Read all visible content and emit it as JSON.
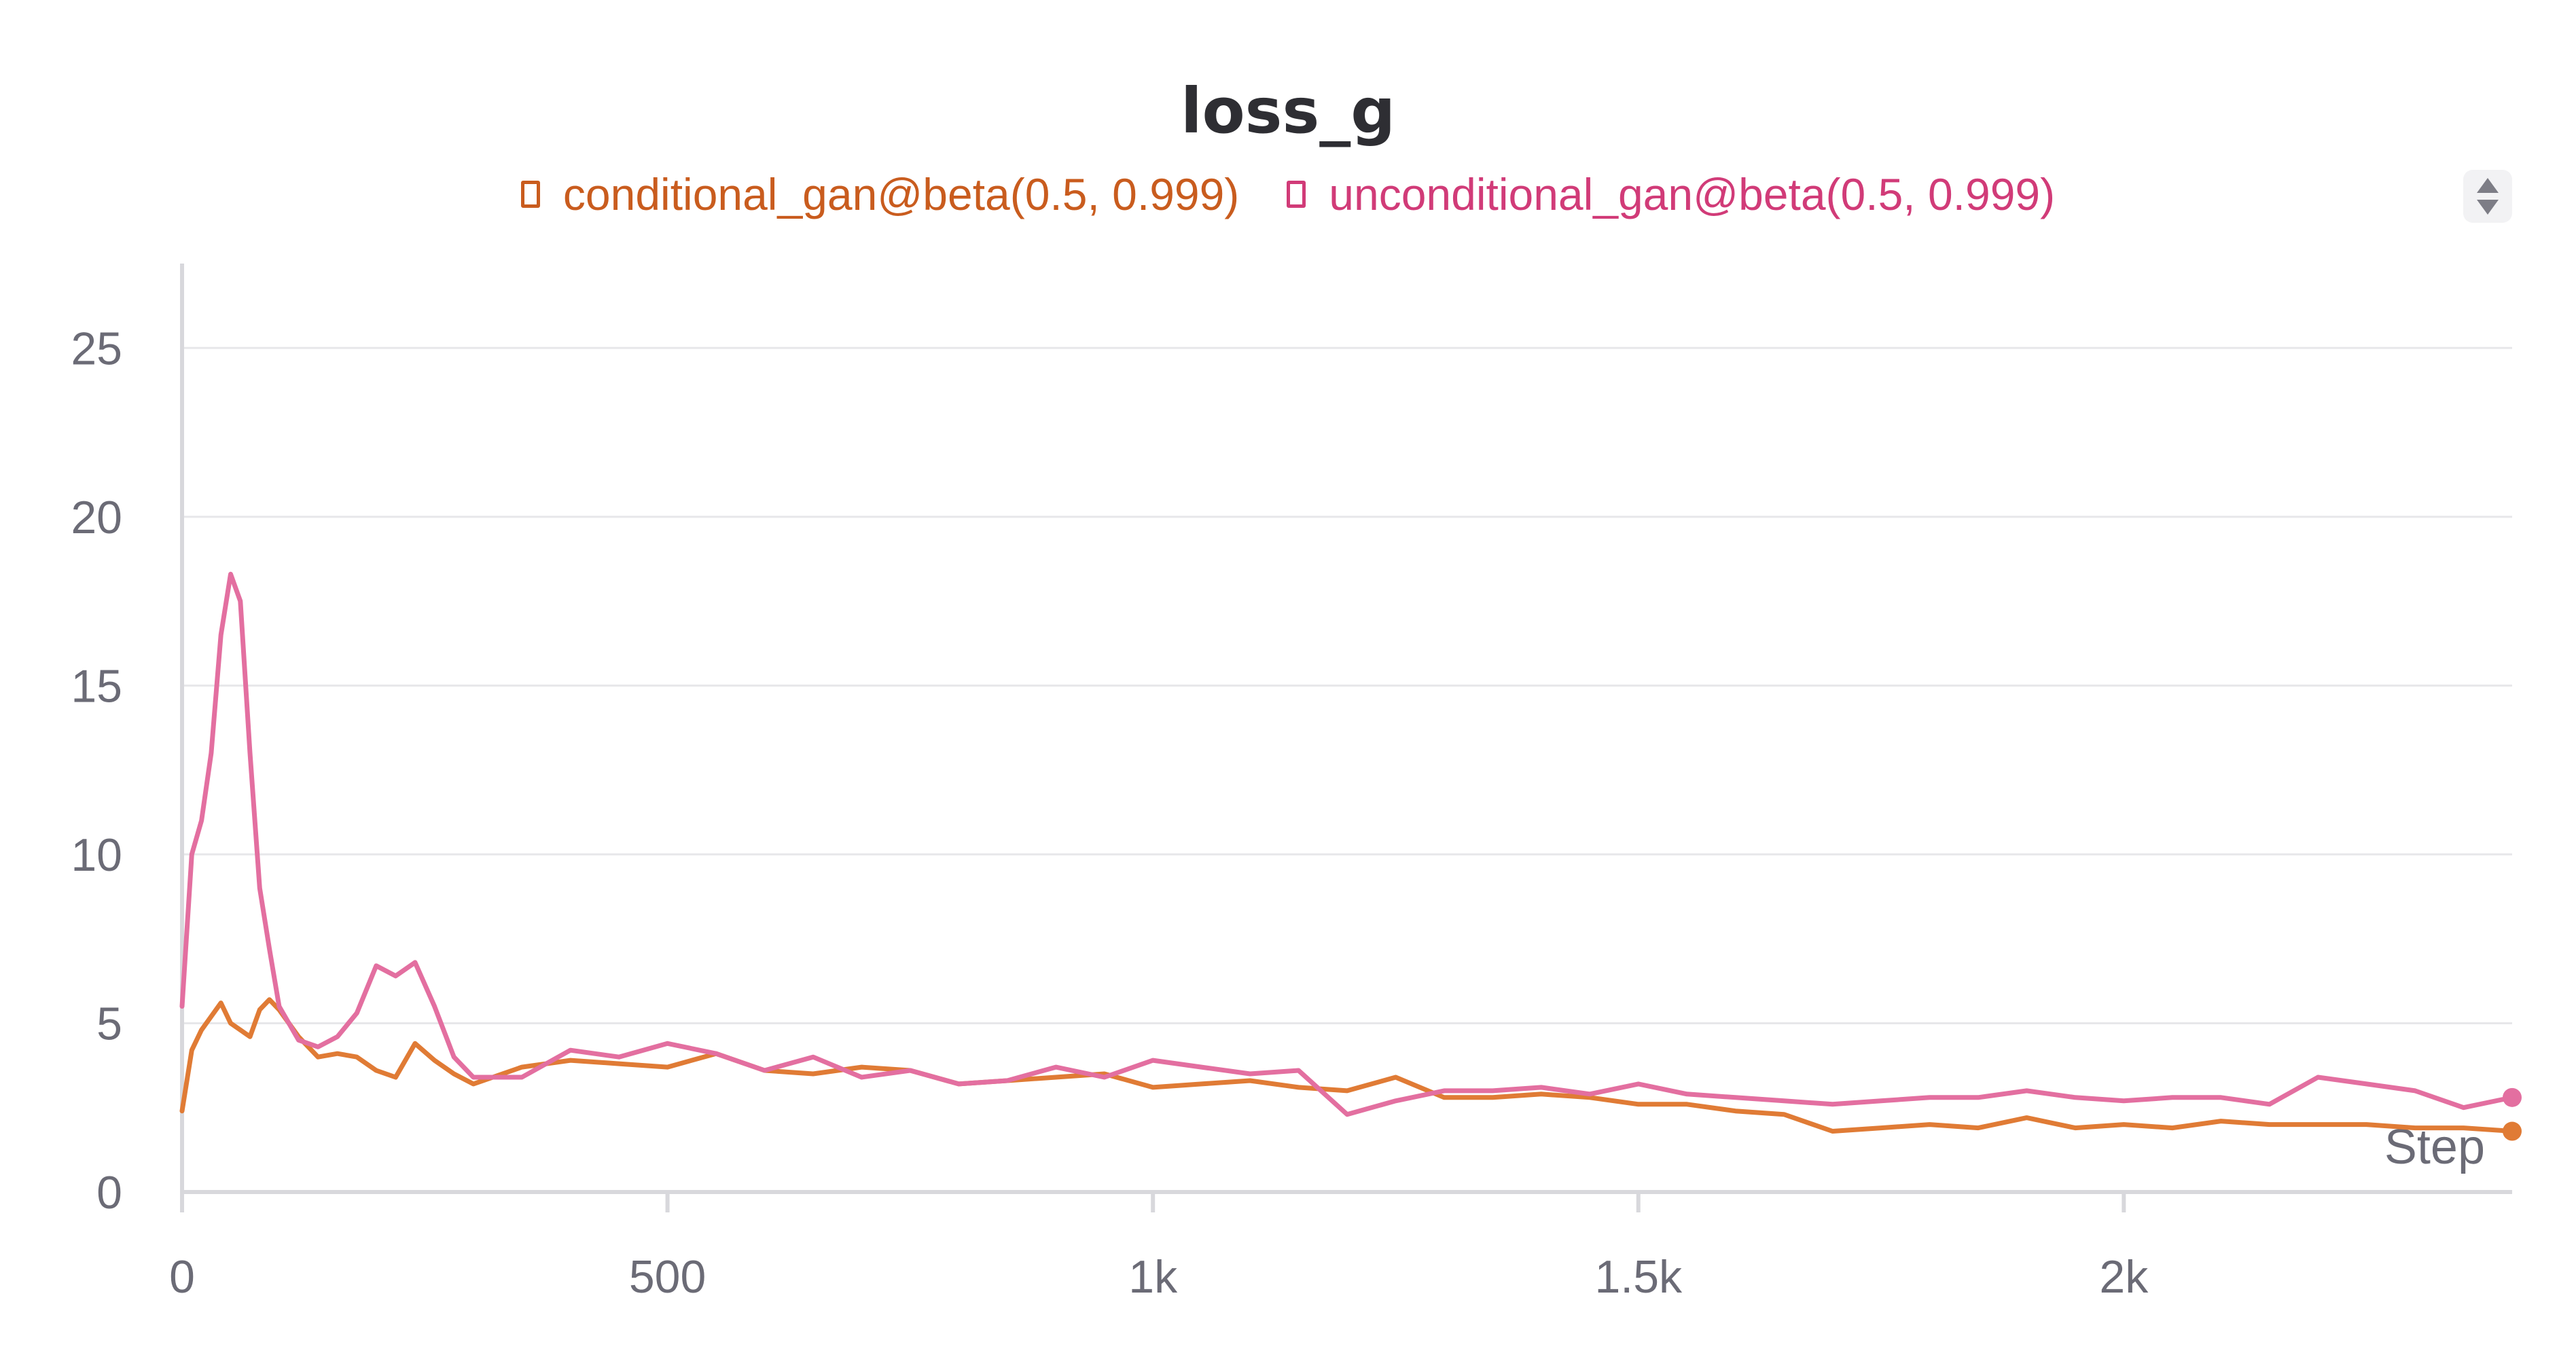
{
  "colors": {
    "series_conditional": "#e07b35",
    "series_unconditional": "#e36fa0",
    "legend_conditional_text": "#c95c1e",
    "legend_unconditional_text": "#d13b78",
    "axis_text": "#6b6b76",
    "grid": "#e7e7ea",
    "axis_line": "#d8d8dc",
    "title": "#2e2e33"
  },
  "legend_scroll_icon": "up-down-arrows-icon",
  "chart_data": {
    "type": "line",
    "title": "loss_g",
    "xlabel": "Step",
    "ylabel": "",
    "xlim": [
      0,
      2400
    ],
    "ylim": [
      0,
      27.5
    ],
    "grid": true,
    "legend_position": "top-center",
    "x_ticks": [
      0,
      500,
      1000,
      1500,
      2000
    ],
    "x_tick_labels": [
      "0",
      "500",
      "1k",
      "1.5k",
      "2k"
    ],
    "y_ticks": [
      0,
      5,
      10,
      15,
      20,
      25
    ],
    "y_tick_labels": [
      "0",
      "5",
      "10",
      "15",
      "20",
      "25"
    ],
    "x": [
      0,
      10,
      20,
      30,
      40,
      50,
      60,
      70,
      80,
      90,
      100,
      120,
      140,
      160,
      180,
      200,
      220,
      240,
      260,
      280,
      300,
      350,
      400,
      450,
      500,
      550,
      600,
      650,
      700,
      750,
      800,
      850,
      900,
      950,
      1000,
      1050,
      1100,
      1150,
      1200,
      1250,
      1300,
      1350,
      1400,
      1450,
      1500,
      1550,
      1600,
      1650,
      1700,
      1750,
      1800,
      1850,
      1900,
      1950,
      2000,
      2050,
      2100,
      2150,
      2200,
      2250,
      2300,
      2350,
      2400
    ],
    "series": [
      {
        "name": "conditional_gan@beta(0.5, 0.999)",
        "values": [
          2.4,
          4.2,
          4.8,
          5.2,
          5.6,
          5.0,
          4.8,
          4.6,
          5.4,
          5.7,
          5.4,
          4.6,
          4.0,
          4.1,
          4.0,
          3.6,
          3.4,
          4.4,
          3.9,
          3.5,
          3.2,
          3.7,
          3.9,
          3.8,
          3.7,
          4.1,
          3.6,
          3.5,
          3.7,
          3.6,
          3.2,
          3.3,
          3.4,
          3.5,
          3.1,
          3.2,
          3.3,
          3.1,
          3.0,
          3.4,
          2.8,
          2.8,
          2.9,
          2.8,
          2.6,
          2.6,
          2.4,
          2.3,
          1.8,
          1.9,
          2.0,
          1.9,
          2.2,
          1.9,
          2.0,
          1.9,
          2.1,
          2.0,
          2.0,
          2.0,
          1.9,
          1.9,
          1.8
        ]
      },
      {
        "name": "unconditional_gan@beta(0.5, 0.999)",
        "values": [
          5.5,
          10.0,
          11.0,
          13.0,
          16.5,
          18.3,
          17.5,
          13.0,
          9.0,
          7.2,
          5.5,
          4.5,
          4.3,
          4.6,
          5.3,
          6.7,
          6.4,
          6.8,
          5.5,
          4.0,
          3.4,
          3.4,
          4.2,
          4.0,
          4.4,
          4.1,
          3.6,
          4.0,
          3.4,
          3.6,
          3.2,
          3.3,
          3.7,
          3.4,
          3.9,
          3.7,
          3.5,
          3.6,
          2.3,
          2.7,
          3.0,
          3.0,
          3.1,
          2.9,
          3.2,
          2.9,
          2.8,
          2.7,
          2.6,
          2.7,
          2.8,
          2.8,
          3.0,
          2.8,
          2.7,
          2.8,
          2.8,
          2.6,
          3.4,
          3.2,
          3.0,
          2.5,
          2.8
        ]
      }
    ]
  }
}
